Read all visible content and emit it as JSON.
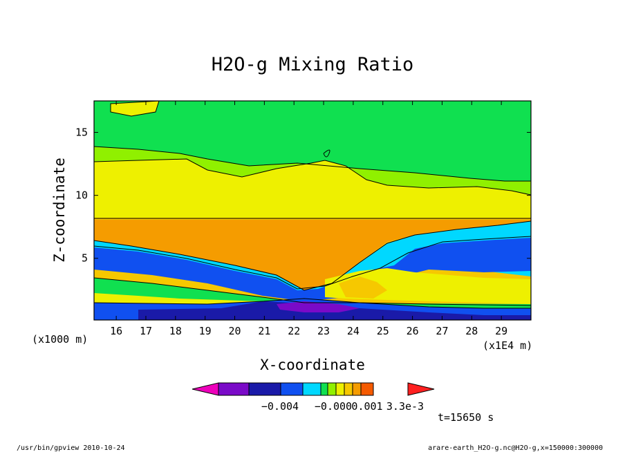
{
  "chart_data": {
    "type": "contour",
    "title": "H2O-g Mixing Ratio",
    "xlabel": "X-coordinate",
    "ylabel": "Z-coordinate",
    "x_unit_label": "(x1E4 m)",
    "y_unit_label": "(x1000 m)",
    "x_ticks": [
      "16",
      "17",
      "18",
      "19",
      "20",
      "21",
      "22",
      "23",
      "24",
      "25",
      "26",
      "27",
      "28",
      "29"
    ],
    "y_ticks": [
      "5",
      "10",
      "15"
    ],
    "xlim": [
      15.25,
      30.0
    ],
    "ylim": [
      0.1,
      17.5
    ],
    "colorbar": {
      "labels": [
        "−0.004",
        "−0.000",
        "0.001",
        "3.3e-3"
      ],
      "colors": [
        "#ee00bb",
        "#7a0ac8",
        "#1a1aa8",
        "#1050f0",
        "#00d8ff",
        "#10e050",
        "#90f000",
        "#eef000",
        "#f6c800",
        "#f59c00",
        "#f55a00",
        "#ff2020"
      ]
    },
    "time_label": "t=15650 s",
    "colors": {
      "background": "#10e050",
      "yellow": "#eef000",
      "yellow_green": "#90f000",
      "orange": "#f59c00",
      "light_orange": "#f6c800",
      "cyan": "#00d8ff",
      "blue": "#1050f0",
      "dark_blue": "#1a1aa8",
      "purple": "#7a0ac8"
    }
  },
  "footer": {
    "left": "/usr/bin/gpview  2010-10-24",
    "right": "arare-earth_H2O-g.nc@H2O-g,x=150000:300000"
  }
}
